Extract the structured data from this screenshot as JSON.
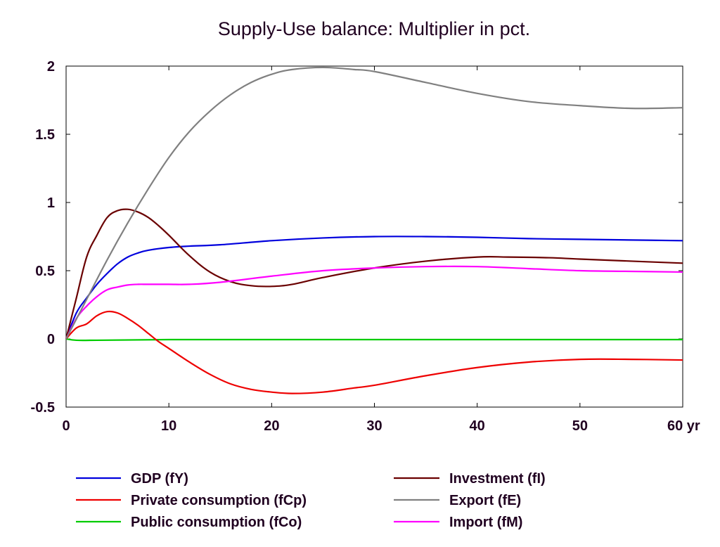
{
  "chart_data": {
    "type": "line",
    "title": "Supply-Use balance: Multiplier in pct.",
    "xlabel": "",
    "ylabel": "",
    "xlim": [
      0,
      60
    ],
    "ylim": [
      -0.5,
      2
    ],
    "x_ticks": [
      "0",
      "10",
      "20",
      "30",
      "40",
      "50",
      "60 yr"
    ],
    "x_tick_values": [
      0,
      10,
      20,
      30,
      40,
      50,
      60
    ],
    "y_ticks": [
      "2",
      "1.5",
      "1",
      "0.5",
      "0",
      "-0.5"
    ],
    "y_tick_values": [
      2,
      1.5,
      1,
      0.5,
      0,
      -0.5
    ],
    "grid": false,
    "legend_position": "bottom",
    "series": [
      {
        "name": "GDP (fY)",
        "color": "#0000dd",
        "points": [
          [
            0,
            0
          ],
          [
            1,
            0.19
          ],
          [
            2,
            0.3
          ],
          [
            3,
            0.4
          ],
          [
            4,
            0.48
          ],
          [
            5,
            0.55
          ],
          [
            6,
            0.6
          ],
          [
            7,
            0.63
          ],
          [
            8,
            0.65
          ],
          [
            10,
            0.67
          ],
          [
            12,
            0.68
          ],
          [
            15,
            0.69
          ],
          [
            20,
            0.72
          ],
          [
            25,
            0.74
          ],
          [
            30,
            0.75
          ],
          [
            35,
            0.75
          ],
          [
            40,
            0.745
          ],
          [
            45,
            0.735
          ],
          [
            50,
            0.73
          ],
          [
            55,
            0.725
          ],
          [
            60,
            0.72
          ]
        ]
      },
      {
        "name": "Private consumption (fCp)",
        "color": "#ee0000",
        "points": [
          [
            0,
            0
          ],
          [
            1,
            0.08
          ],
          [
            2,
            0.11
          ],
          [
            3,
            0.17
          ],
          [
            4,
            0.2
          ],
          [
            5,
            0.19
          ],
          [
            6,
            0.15
          ],
          [
            7,
            0.1
          ],
          [
            8,
            0.04
          ],
          [
            9,
            -0.02
          ],
          [
            10,
            -0.07
          ],
          [
            12,
            -0.17
          ],
          [
            14,
            -0.26
          ],
          [
            16,
            -0.33
          ],
          [
            18,
            -0.37
          ],
          [
            20,
            -0.39
          ],
          [
            22,
            -0.4
          ],
          [
            25,
            -0.39
          ],
          [
            28,
            -0.36
          ],
          [
            30,
            -0.34
          ],
          [
            35,
            -0.27
          ],
          [
            40,
            -0.21
          ],
          [
            45,
            -0.17
          ],
          [
            50,
            -0.15
          ],
          [
            55,
            -0.15
          ],
          [
            60,
            -0.155
          ]
        ]
      },
      {
        "name": "Public consumption (fCo)",
        "color": "#00cc00",
        "points": [
          [
            0,
            0
          ],
          [
            1,
            -0.01
          ],
          [
            3,
            -0.01
          ],
          [
            10,
            -0.005
          ],
          [
            20,
            -0.005
          ],
          [
            30,
            -0.005
          ],
          [
            40,
            -0.005
          ],
          [
            50,
            -0.005
          ],
          [
            60,
            -0.005
          ]
        ]
      },
      {
        "name": "Investment (fI)",
        "color": "#6a0000",
        "points": [
          [
            0,
            0
          ],
          [
            1,
            0.3
          ],
          [
            2,
            0.6
          ],
          [
            3,
            0.76
          ],
          [
            4,
            0.89
          ],
          [
            5,
            0.94
          ],
          [
            6,
            0.95
          ],
          [
            7,
            0.93
          ],
          [
            8,
            0.89
          ],
          [
            9,
            0.83
          ],
          [
            10,
            0.76
          ],
          [
            12,
            0.61
          ],
          [
            14,
            0.49
          ],
          [
            16,
            0.42
          ],
          [
            18,
            0.39
          ],
          [
            20,
            0.385
          ],
          [
            22,
            0.4
          ],
          [
            25,
            0.45
          ],
          [
            30,
            0.52
          ],
          [
            35,
            0.57
          ],
          [
            40,
            0.6
          ],
          [
            43,
            0.6
          ],
          [
            47,
            0.595
          ],
          [
            50,
            0.585
          ],
          [
            55,
            0.57
          ],
          [
            60,
            0.555
          ]
        ]
      },
      {
        "name": "Export (fE)",
        "color": "#808080",
        "points": [
          [
            0,
            0
          ],
          [
            2,
            0.29
          ],
          [
            4,
            0.58
          ],
          [
            6,
            0.85
          ],
          [
            8,
            1.1
          ],
          [
            10,
            1.33
          ],
          [
            12,
            1.52
          ],
          [
            14,
            1.67
          ],
          [
            16,
            1.79
          ],
          [
            18,
            1.88
          ],
          [
            20,
            1.94
          ],
          [
            22,
            1.975
          ],
          [
            25,
            1.99
          ],
          [
            28,
            1.975
          ],
          [
            30,
            1.96
          ],
          [
            35,
            1.88
          ],
          [
            40,
            1.8
          ],
          [
            45,
            1.74
          ],
          [
            50,
            1.71
          ],
          [
            55,
            1.69
          ],
          [
            60,
            1.695
          ]
        ]
      },
      {
        "name": "Import (fM)",
        "color": "#ff00ff",
        "points": [
          [
            0,
            0
          ],
          [
            1,
            0.15
          ],
          [
            2,
            0.24
          ],
          [
            3,
            0.31
          ],
          [
            4,
            0.36
          ],
          [
            5,
            0.38
          ],
          [
            6,
            0.395
          ],
          [
            7,
            0.4
          ],
          [
            8,
            0.4
          ],
          [
            10,
            0.4
          ],
          [
            12,
            0.4
          ],
          [
            15,
            0.415
          ],
          [
            20,
            0.46
          ],
          [
            25,
            0.5
          ],
          [
            30,
            0.52
          ],
          [
            35,
            0.53
          ],
          [
            40,
            0.53
          ],
          [
            45,
            0.515
          ],
          [
            50,
            0.5
          ],
          [
            55,
            0.495
          ],
          [
            60,
            0.49
          ]
        ]
      }
    ]
  }
}
